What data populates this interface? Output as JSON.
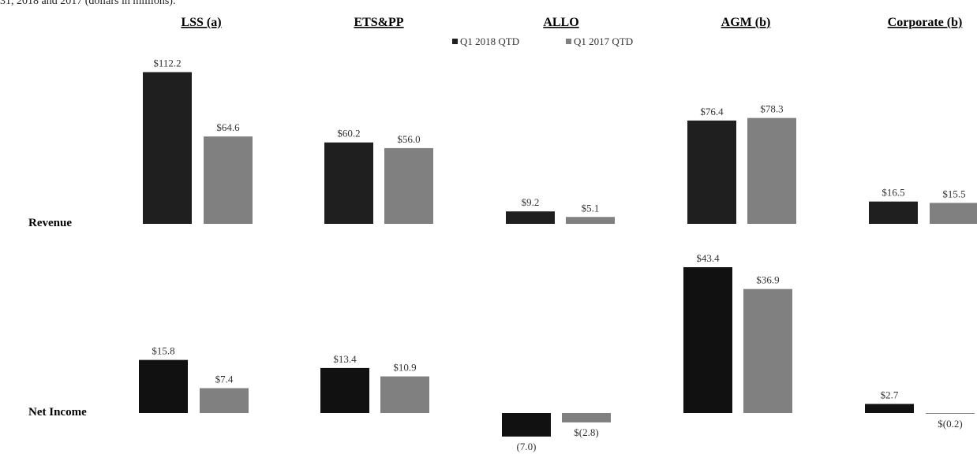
{
  "caption": "31, 2018 and 2017 (dollars in millions):",
  "legend": [
    {
      "label": "Q1   2018 QTD",
      "color": "#1f1f1f"
    },
    {
      "label": "Q1   2017 QTD",
      "color": "#808080"
    }
  ],
  "rows": [
    "Revenue",
    "Net Income"
  ],
  "chart_data": {
    "type": "bar",
    "segments": [
      "LSS (a)",
      "ETS&PP",
      "ALLO",
      "AGM (b)",
      "Corporate (b)"
    ],
    "series": [
      {
        "name": "Q1 2018 QTD",
        "color": "#1f1f1f"
      },
      {
        "name": "Q1 2017 QTD",
        "color": "#808080"
      }
    ],
    "revenue": {
      "values_2018": [
        112.2,
        60.2,
        9.2,
        76.4,
        16.5
      ],
      "values_2017": [
        64.6,
        56.0,
        5.1,
        78.3,
        15.5
      ],
      "labels_2018": [
        "$112.2",
        "$60.2",
        "$9.2",
        "$76.4",
        "$16.5"
      ],
      "labels_2017": [
        "$64.6",
        "$56.0",
        "$5.1",
        "$78.3",
        "$15.5"
      ]
    },
    "net_income": {
      "values_2018": [
        15.8,
        13.4,
        -7.0,
        43.4,
        2.7
      ],
      "values_2017": [
        7.4,
        10.9,
        -2.8,
        36.9,
        -0.2
      ],
      "labels_2018": [
        "$15.8",
        "$13.4",
        "(7.0)",
        "$43.4",
        "$2.7"
      ],
      "labels_2017": [
        "$7.4",
        "$10.9",
        "$(2.8)",
        "$36.9",
        "$(0.2)"
      ]
    },
    "grid": false,
    "legend_position": "top-center"
  }
}
